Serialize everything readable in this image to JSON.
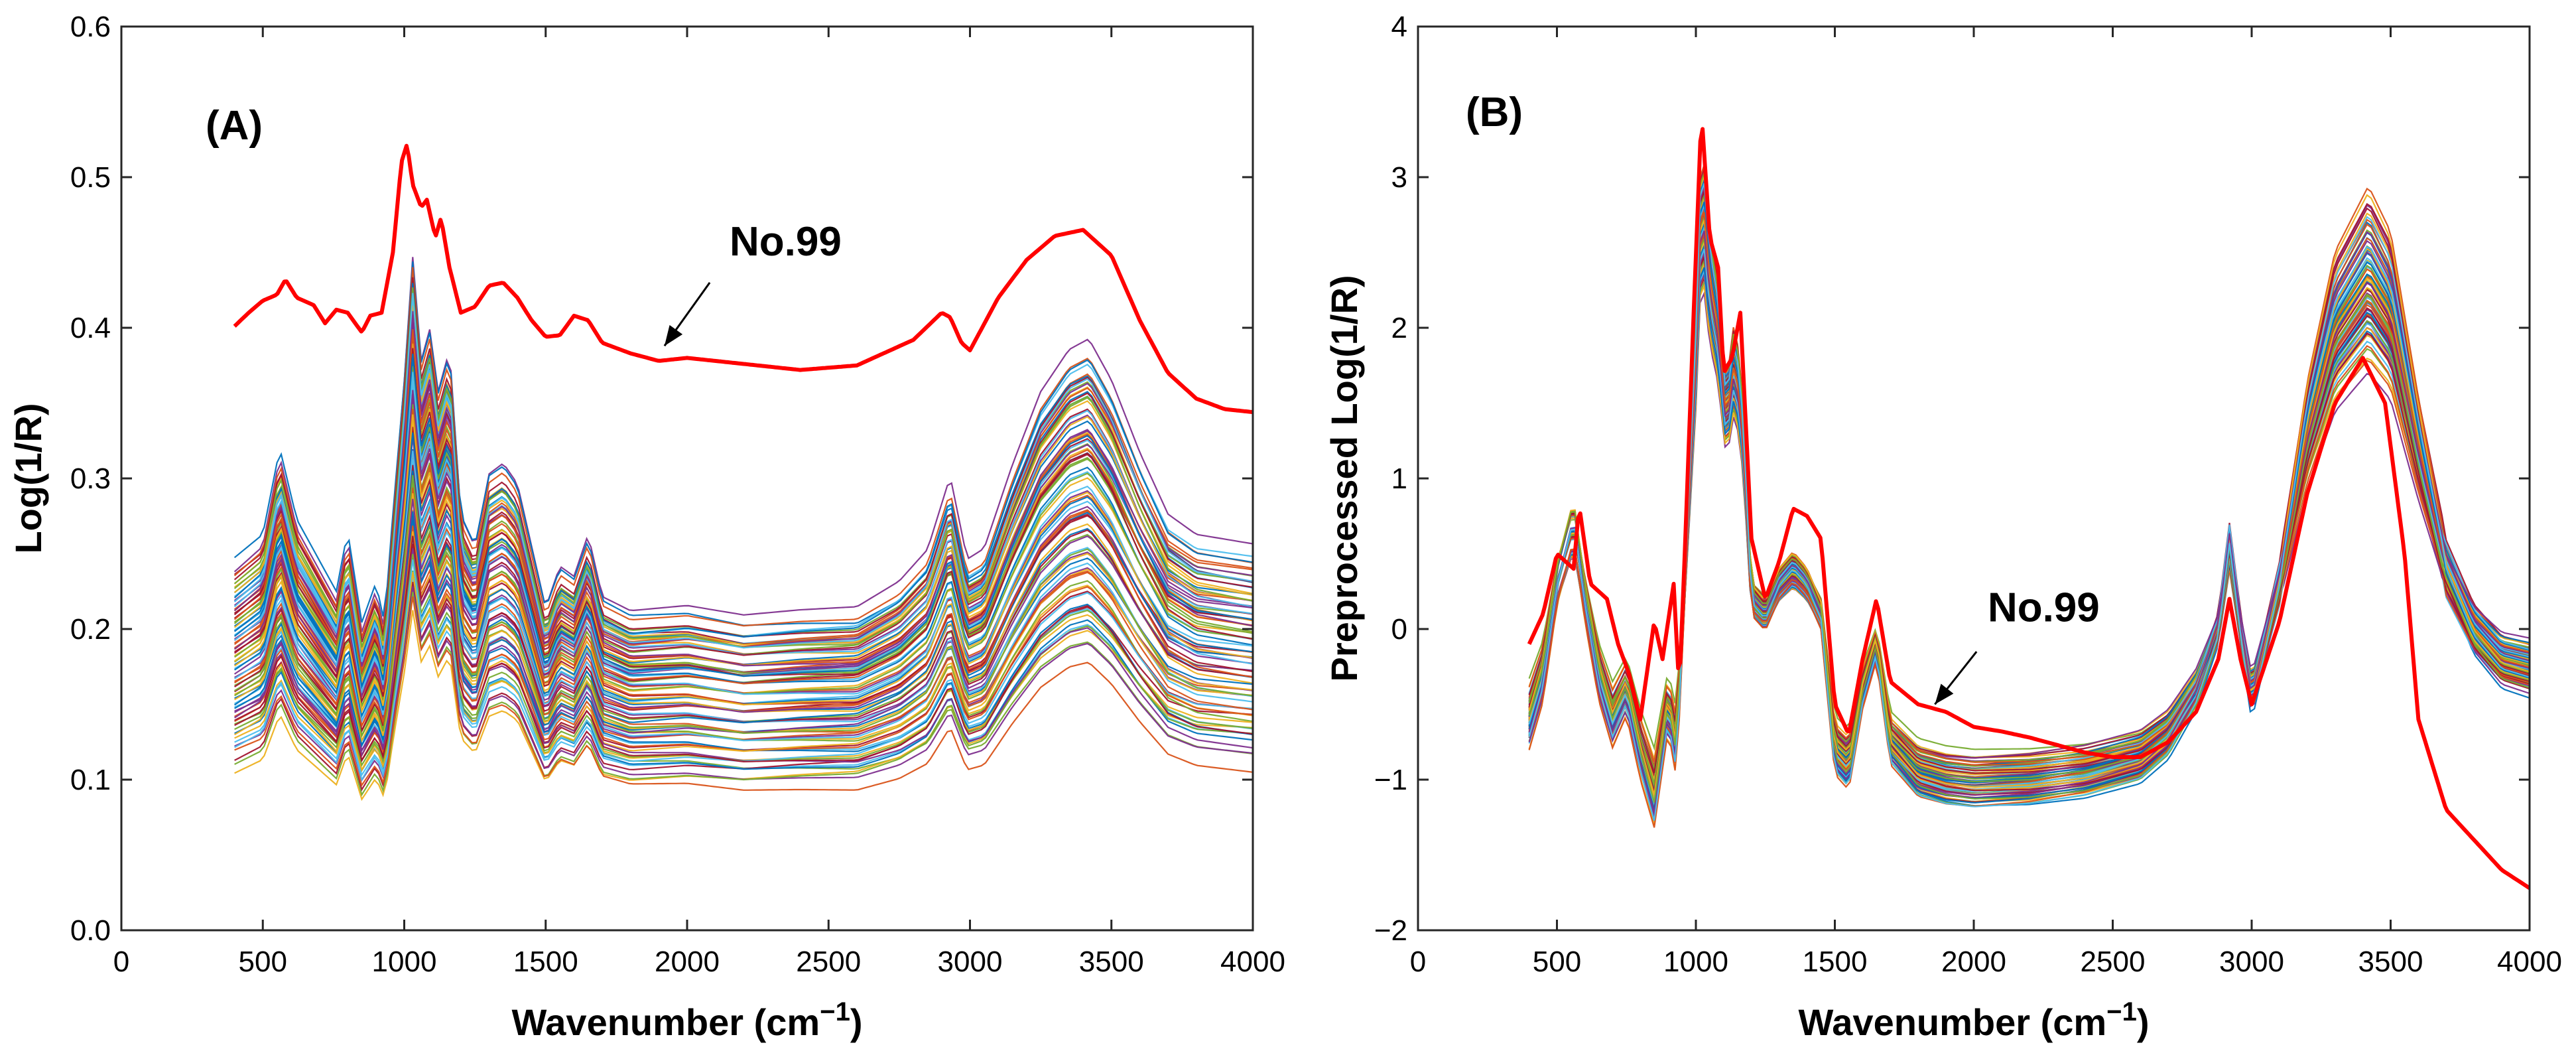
{
  "chart_data": [
    {
      "type": "line",
      "panel": "(A)",
      "xlabel_main": "Wavenumber (cm",
      "xlabel_sup": "−1",
      "xlabel_close": ")",
      "ylabel": "Log(1/R)",
      "xlim": [
        0,
        4000
      ],
      "ylim": [
        0.0,
        0.6
      ],
      "xticks": [
        0,
        500,
        1000,
        1500,
        2000,
        2500,
        3000,
        3500,
        4000
      ],
      "xtick_labels": [
        "0",
        "500",
        "1000",
        "1500",
        "2000",
        "2500",
        "3000",
        "3500",
        "4000"
      ],
      "yticks": [
        0,
        0.1,
        0.2,
        0.3,
        0.4,
        0.5,
        0.6
      ],
      "ytick_labels": [
        "0.0",
        "0.1",
        "0.2",
        "0.3",
        "0.4",
        "0.5",
        "0.6"
      ],
      "annotation": {
        "text": "No.99",
        "text_x": 2150,
        "text_y": 0.448,
        "tip_x": 1920,
        "tip_y": 0.388,
        "tail_x": 2080,
        "tail_y": 0.43
      },
      "highlight": {
        "name": "No.99",
        "color": "#ff0000",
        "x": [
          400,
          450,
          500,
          550,
          580,
          620,
          680,
          720,
          760,
          800,
          850,
          880,
          920,
          960,
          990,
          1010,
          1030,
          1060,
          1080,
          1110,
          1130,
          1160,
          1200,
          1250,
          1300,
          1350,
          1400,
          1450,
          1500,
          1550,
          1600,
          1650,
          1700,
          1800,
          1900,
          2000,
          2200,
          2400,
          2600,
          2800,
          2900,
          2930,
          2970,
          3000,
          3100,
          3200,
          3300,
          3400,
          3500,
          3600,
          3700,
          3800,
          3900,
          4000
        ],
        "y": [
          0.401,
          0.41,
          0.418,
          0.422,
          0.432,
          0.42,
          0.415,
          0.403,
          0.412,
          0.41,
          0.397,
          0.408,
          0.41,
          0.45,
          0.51,
          0.522,
          0.495,
          0.48,
          0.485,
          0.46,
          0.473,
          0.44,
          0.41,
          0.414,
          0.428,
          0.43,
          0.42,
          0.405,
          0.394,
          0.395,
          0.408,
          0.405,
          0.39,
          0.383,
          0.378,
          0.38,
          0.376,
          0.372,
          0.375,
          0.392,
          0.41,
          0.407,
          0.39,
          0.385,
          0.42,
          0.445,
          0.461,
          0.465,
          0.448,
          0.405,
          0.37,
          0.353,
          0.346,
          0.344
        ]
      },
      "family_base": {
        "x": [
          400,
          500,
          560,
          620,
          700,
          760,
          800,
          850,
          900,
          930,
          960,
          1000,
          1030,
          1060,
          1090,
          1120,
          1160,
          1200,
          1250,
          1300,
          1350,
          1400,
          1450,
          1500,
          1550,
          1600,
          1650,
          1700,
          1800,
          2000,
          2200,
          2400,
          2600,
          2750,
          2850,
          2930,
          2990,
          3050,
          3150,
          3250,
          3350,
          3420,
          3500,
          3600,
          3700,
          3800,
          4000
        ],
        "y": [
          0.17,
          0.182,
          0.225,
          0.19,
          0.17,
          0.155,
          0.185,
          0.14,
          0.16,
          0.14,
          0.195,
          0.26,
          0.32,
          0.27,
          0.285,
          0.255,
          0.275,
          0.195,
          0.18,
          0.215,
          0.22,
          0.21,
          0.18,
          0.15,
          0.17,
          0.165,
          0.185,
          0.155,
          0.148,
          0.15,
          0.145,
          0.147,
          0.148,
          0.16,
          0.175,
          0.21,
          0.17,
          0.175,
          0.215,
          0.25,
          0.27,
          0.275,
          0.255,
          0.22,
          0.19,
          0.18,
          0.175
        ]
      },
      "family_count": 90,
      "family_offset_range": [
        0.68,
        1.38
      ]
    },
    {
      "type": "line",
      "panel": "(B)",
      "xlabel_main": "Wavenumber (cm",
      "xlabel_sup": "−1",
      "xlabel_close": ")",
      "ylabel": "Preprocessed Log(1/R)",
      "xlim": [
        0,
        4000
      ],
      "ylim": [
        -2,
        4
      ],
      "xticks": [
        0,
        500,
        1000,
        1500,
        2000,
        2500,
        3000,
        3500,
        4000
      ],
      "xtick_labels": [
        "0",
        "500",
        "1000",
        "1500",
        "2000",
        "2500",
        "3000",
        "3500",
        "4000"
      ],
      "yticks": [
        -2,
        -1,
        0,
        1,
        2,
        3,
        4
      ],
      "ytick_labels": [
        "−2",
        "−1",
        "0",
        "1",
        "2",
        "3",
        "4"
      ],
      "annotation": {
        "text": "No.99",
        "text_x": 2050,
        "text_y": 0.05,
        "tip_x": 1860,
        "tip_y": -0.5,
        "tail_x": 2010,
        "tail_y": -0.15
      },
      "highlight": {
        "name": "No.99",
        "color": "#ff0000",
        "x": [
          400,
          450,
          500,
          560,
          580,
          620,
          680,
          720,
          760,
          800,
          850,
          880,
          920,
          940,
          960,
          990,
          1020,
          1050,
          1080,
          1100,
          1130,
          1160,
          1200,
          1250,
          1300,
          1350,
          1400,
          1450,
          1500,
          1550,
          1600,
          1650,
          1700,
          1800,
          1900,
          2000,
          2100,
          2200,
          2400,
          2500,
          2600,
          2700,
          2800,
          2880,
          2920,
          2960,
          3000,
          3100,
          3200,
          3300,
          3400,
          3480,
          3550,
          3600,
          3700,
          3800,
          3900,
          4000
        ],
        "y": [
          -0.1,
          0.1,
          0.5,
          0.4,
          0.82,
          0.3,
          0.2,
          -0.1,
          -0.3,
          -0.6,
          0.05,
          -0.2,
          0.3,
          -0.4,
          0.5,
          2.0,
          3.43,
          2.6,
          2.4,
          1.7,
          1.8,
          2.1,
          0.6,
          0.2,
          0.45,
          0.8,
          0.75,
          0.6,
          -0.5,
          -0.7,
          -0.2,
          0.2,
          -0.35,
          -0.5,
          -0.55,
          -0.65,
          -0.68,
          -0.72,
          -0.82,
          -0.85,
          -0.85,
          -0.75,
          -0.55,
          -0.2,
          0.2,
          -0.2,
          -0.5,
          0.05,
          0.9,
          1.5,
          1.8,
          1.5,
          0.5,
          -0.6,
          -1.2,
          -1.4,
          -1.6,
          -1.72
        ]
      },
      "family_base": {
        "x": [
          400,
          450,
          500,
          560,
          600,
          650,
          700,
          750,
          800,
          850,
          900,
          930,
          960,
          1000,
          1020,
          1050,
          1080,
          1110,
          1140,
          1170,
          1200,
          1250,
          1300,
          1350,
          1400,
          1450,
          1500,
          1550,
          1600,
          1650,
          1700,
          1800,
          1900,
          2000,
          2200,
          2400,
          2600,
          2700,
          2800,
          2880,
          2920,
          2960,
          3000,
          3100,
          3200,
          3300,
          3420,
          3500,
          3600,
          3700,
          3800,
          3900,
          4000
        ],
        "y": [
          -0.6,
          -0.3,
          0.3,
          0.7,
          0.2,
          -0.3,
          -0.6,
          -0.4,
          -0.8,
          -1.1,
          -0.5,
          -0.8,
          0.3,
          1.8,
          2.9,
          2.3,
          2.0,
          1.4,
          1.8,
          1.3,
          0.2,
          0.1,
          0.3,
          0.4,
          0.3,
          0.1,
          -0.8,
          -0.9,
          -0.4,
          -0.1,
          -0.75,
          -0.95,
          -1.0,
          -1.02,
          -1.0,
          -0.95,
          -0.85,
          -0.7,
          -0.4,
          0.0,
          0.55,
          0.0,
          -0.45,
          0.3,
          1.3,
          2.0,
          2.35,
          2.1,
          1.2,
          0.4,
          0.0,
          -0.2,
          -0.25
        ]
      },
      "family_count": 90,
      "family_offset_range": [
        0.85,
        1.12
      ]
    }
  ]
}
